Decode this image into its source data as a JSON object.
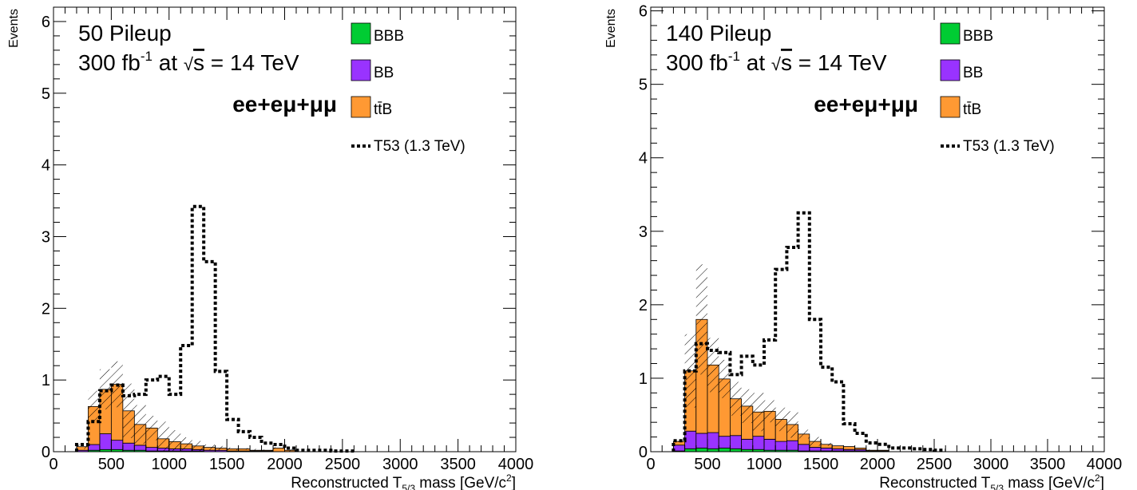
{
  "legend": {
    "entries": [
      {
        "label": "BBB",
        "color": "#00cc33",
        "kind": "fill"
      },
      {
        "label": "BB",
        "color": "#9933ff",
        "kind": "fill"
      },
      {
        "label": "tt̄B",
        "color": "#ff9933",
        "kind": "fill"
      },
      {
        "label": "T53 (1.3 TeV)",
        "color": "#000000",
        "kind": "dotted-line"
      }
    ]
  },
  "channel_label": "ee+eμ+μμ",
  "lumi_text": {
    "prefix": "300 fb",
    "sup": "-1",
    "mid": " at ",
    "sqrt_symbol": "√",
    "s": "s",
    "suffix": " = 14 TeV"
  },
  "ylabel": "Events",
  "xlabel": {
    "pre": "Reconstructed T",
    "sub": "5/3",
    "post": " mass [GeV/c",
    "sup": "2",
    "close": "]"
  },
  "chart_data": [
    {
      "type": "bar",
      "stacked": true,
      "title": "50 Pileup",
      "xlim": [
        0,
        4000
      ],
      "ylim": [
        0,
        6.2
      ],
      "xticks": [
        0,
        500,
        1000,
        1500,
        2000,
        2500,
        3000,
        3500,
        4000
      ],
      "yticks": [
        0,
        1,
        2,
        3,
        4,
        5,
        6
      ],
      "bin_width": 100,
      "bin_edges_start": 200,
      "series": [
        {
          "name": "BBB",
          "values": [
            0.0,
            0.02,
            0.03,
            0.03,
            0.02,
            0.02,
            0.01,
            0.01,
            0.01,
            0.01,
            0.01,
            0.0,
            0.0,
            0.0,
            0.0,
            0.0,
            0.0,
            0.0,
            0.0,
            0.0
          ]
        },
        {
          "name": "BB",
          "values": [
            0.02,
            0.08,
            0.22,
            0.13,
            0.1,
            0.07,
            0.05,
            0.04,
            0.03,
            0.03,
            0.02,
            0.02,
            0.02,
            0.01,
            0.01,
            0.01,
            0.01,
            0.0,
            0.0,
            0.0
          ]
        },
        {
          "name": "tt̄B",
          "values": [
            0.05,
            0.53,
            0.62,
            0.78,
            0.45,
            0.29,
            0.27,
            0.13,
            0.1,
            0.07,
            0.05,
            0.04,
            0.03,
            0.03,
            0.03,
            0.01,
            0.01,
            0.05,
            0.02,
            0.0
          ]
        },
        {
          "name": "T53 (1.3 TeV)",
          "kind": "line",
          "values": [
            0.1,
            0.42,
            0.85,
            0.93,
            0.78,
            0.8,
            1.0,
            1.05,
            0.8,
            1.48,
            3.42,
            2.65,
            1.12,
            0.45,
            0.28,
            0.2,
            0.12,
            0.1,
            0.05,
            0.02,
            0.02,
            0.02,
            0.01,
            0.01
          ]
        }
      ],
      "uncertainty_band": {
        "upper": [
          0.1,
          0.85,
          1.15,
          1.26,
          0.95,
          0.65,
          0.5,
          0.42,
          0.3,
          0.2,
          0.15,
          0.1,
          0.08,
          0.06,
          0.05,
          0.04,
          0.03,
          0.06,
          0.04,
          0.0
        ]
      }
    },
    {
      "type": "bar",
      "stacked": true,
      "title": "140 Pileup",
      "xlim": [
        0,
        4000
      ],
      "ylim": [
        0,
        6.05
      ],
      "xticks": [
        0,
        500,
        1000,
        1500,
        2000,
        2500,
        3000,
        3500,
        4000
      ],
      "yticks": [
        0,
        1,
        2,
        3,
        4,
        5,
        6
      ],
      "bin_width": 100,
      "bin_edges_start": 200,
      "series": [
        {
          "name": "BBB",
          "values": [
            0.01,
            0.04,
            0.05,
            0.04,
            0.05,
            0.04,
            0.03,
            0.03,
            0.02,
            0.02,
            0.02,
            0.01,
            0.01,
            0.01,
            0.01,
            0.01,
            0.01,
            0.0,
            0.0,
            0.0
          ]
        },
        {
          "name": "BB",
          "values": [
            0.08,
            0.24,
            0.2,
            0.22,
            0.16,
            0.18,
            0.14,
            0.18,
            0.15,
            0.12,
            0.13,
            0.09,
            0.05,
            0.04,
            0.03,
            0.02,
            0.02,
            0.01,
            0.01,
            0.0
          ]
        },
        {
          "name": "tt̄B",
          "values": [
            0.05,
            0.82,
            1.55,
            0.92,
            0.78,
            0.5,
            0.45,
            0.33,
            0.38,
            0.3,
            0.22,
            0.14,
            0.08,
            0.05,
            0.04,
            0.04,
            0.02,
            0.01,
            0.01,
            0.0
          ]
        },
        {
          "name": "T53 (1.3 TeV)",
          "kind": "line",
          "values": [
            0.15,
            1.1,
            1.47,
            1.38,
            1.35,
            1.05,
            1.3,
            1.18,
            1.52,
            2.48,
            2.78,
            3.25,
            1.8,
            1.15,
            0.95,
            0.38,
            0.25,
            0.12,
            0.1,
            0.05,
            0.05,
            0.04,
            0.03,
            0.02
          ]
        }
      ],
      "uncertainty_band": {
        "upper": [
          0.15,
          1.6,
          2.55,
          1.55,
          1.25,
          0.95,
          0.85,
          0.8,
          0.7,
          0.6,
          0.55,
          0.3,
          0.2,
          0.12,
          0.08,
          0.06,
          0.05,
          0.03,
          0.02,
          0.0
        ]
      }
    }
  ]
}
